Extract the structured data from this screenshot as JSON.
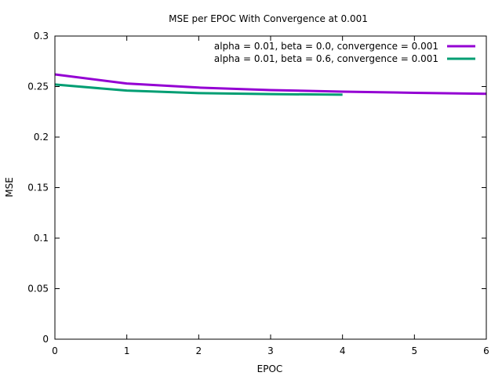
{
  "chart_data": {
    "type": "line",
    "title": "MSE per EPOC With Convergence at 0.001",
    "xlabel": "EPOC",
    "ylabel": "MSE",
    "xlim": [
      0,
      6
    ],
    "ylim": [
      0,
      0.3
    ],
    "x_ticks": [
      0,
      1,
      2,
      3,
      4,
      5,
      6
    ],
    "y_ticks": [
      0,
      0.05,
      0.1,
      0.15,
      0.2,
      0.25,
      0.3
    ],
    "y_tick_labels": [
      "0",
      "0.05",
      "0.1",
      "0.15",
      "0.2",
      "0.25",
      "0.3"
    ],
    "grid": false,
    "legend_position": "top-right",
    "series": [
      {
        "name": "alpha = 0.01, beta = 0.0, convergence = 0.001",
        "color": "#9400D3",
        "x": [
          0,
          1,
          2,
          3,
          4,
          5,
          6
        ],
        "y": [
          0.262,
          0.253,
          0.249,
          0.2465,
          0.245,
          0.2438,
          0.2428
        ]
      },
      {
        "name": "alpha = 0.01, beta = 0.6, convergence = 0.001",
        "color": "#009E73",
        "x": [
          0,
          1,
          2,
          3,
          4
        ],
        "y": [
          0.252,
          0.246,
          0.2435,
          0.2425,
          0.242
        ]
      }
    ]
  }
}
